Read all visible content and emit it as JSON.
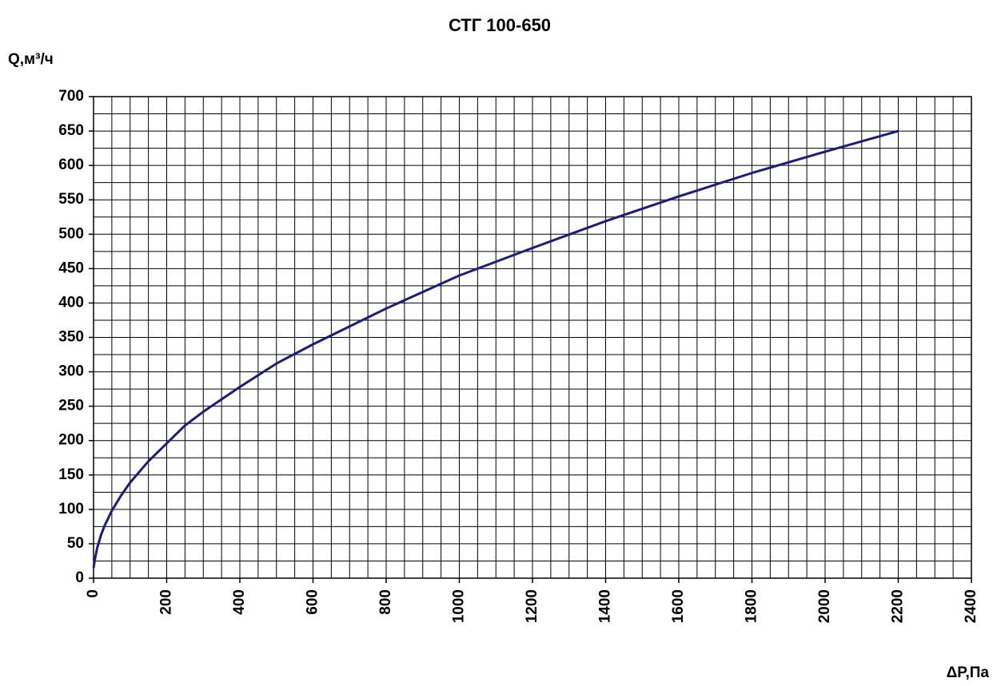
{
  "chart_data": {
    "type": "line",
    "title": "СТГ 100-650",
    "y_label": "Q,м³/ч",
    "x_label": "ΔP,Па",
    "x": [
      0,
      5,
      10,
      20,
      30,
      50,
      75,
      100,
      150,
      200,
      250,
      300,
      400,
      500,
      600,
      700,
      800,
      900,
      1000,
      1200,
      1400,
      1600,
      1800,
      2000,
      2200
    ],
    "series": [
      {
        "name": "СТГ 100-650",
        "color": "#1c1c7c",
        "values": [
          15,
          31,
          44,
          62,
          76,
          98,
          120,
          139,
          170,
          196,
          222,
          242,
          278,
          312,
          340,
          366,
          392,
          416,
          440,
          480,
          519,
          555,
          589,
          620,
          650
        ]
      }
    ],
    "xlim": [
      0,
      2400
    ],
    "xticks": [
      0,
      200,
      400,
      600,
      800,
      1000,
      1200,
      1400,
      1600,
      1800,
      2000,
      2200,
      2400
    ],
    "ylim": [
      0,
      700
    ],
    "yticks": [
      0,
      50,
      100,
      150,
      200,
      250,
      300,
      350,
      400,
      450,
      500,
      550,
      600,
      650,
      700
    ],
    "grid": true,
    "xgrid_step": 50,
    "ygrid_step": 25
  }
}
